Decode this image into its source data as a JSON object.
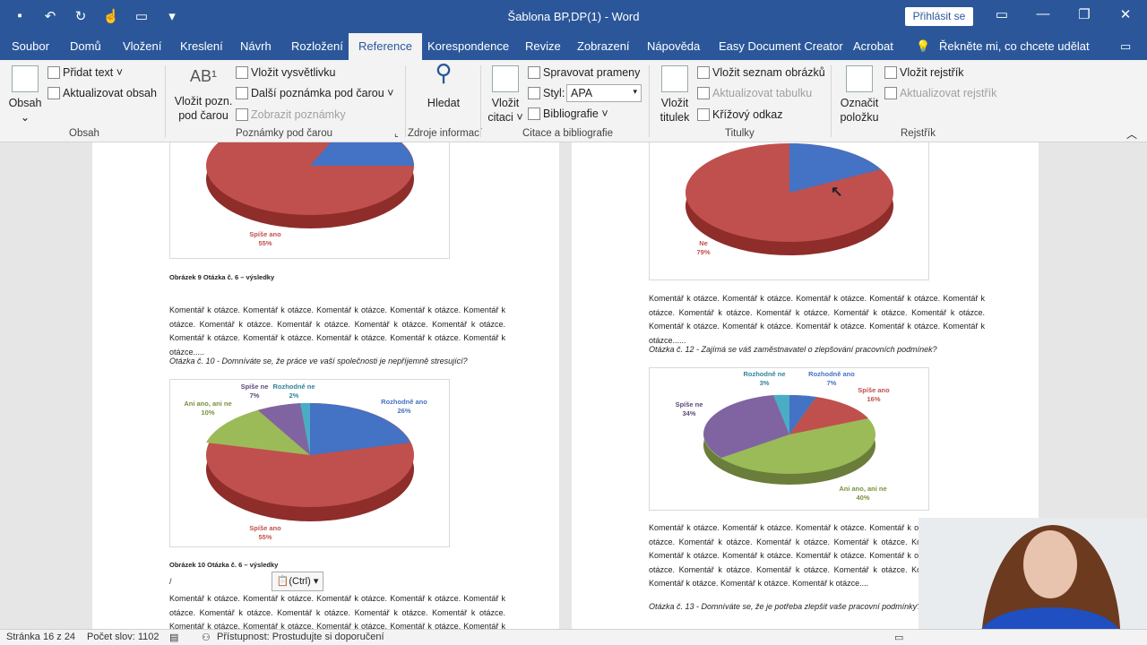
{
  "window": {
    "title": "Šablona BP,DP(1)  -  Word",
    "login_label": "Přihlásit se",
    "qat_icons": [
      "save-icon",
      "undo-icon",
      "redo-icon",
      "touch-icon",
      "new-doc-icon",
      "customize-icon"
    ]
  },
  "tabs": [
    "Soubor",
    "Domů",
    "Vložení",
    "Kreslení",
    "Návrh",
    "Rozložení",
    "Reference",
    "Korespondence",
    "Revize",
    "Zobrazení",
    "Nápověda",
    "Easy Document Creator",
    "Acrobat"
  ],
  "active_tab": "Reference",
  "tell_me": "Řekněte mi, co chcete udělat",
  "ribbon": {
    "obsah": {
      "big_label1": "Obsah",
      "add_text": "Přidat text",
      "update": "Aktualizovat obsah",
      "group": "Obsah"
    },
    "footnotes": {
      "insert_label1": "Vložit pozn.",
      "insert_label2": "pod čarou",
      "endnote": "Vložit vysvětlivku",
      "next": "Další poznámka pod čarou",
      "show": "Zobrazit poznámky",
      "group": "Poznámky pod čarou"
    },
    "research": {
      "search": "Hledat",
      "group": "Zdroje informací"
    },
    "citations": {
      "insert1": "Vložit",
      "insert2": "citaci",
      "manage": "Spravovat prameny",
      "style_label": "Styl:",
      "style_value": "APA",
      "bibliography": "Bibliografie",
      "group": "Citace a bibliografie"
    },
    "captions": {
      "insert1": "Vložit",
      "insert2": "titulek",
      "figures": "Vložit seznam obrázků",
      "update_table": "Aktualizovat tabulku",
      "cross": "Křížový odkaz",
      "group": "Titulky"
    },
    "index": {
      "mark1": "Označit",
      "mark2": "položku",
      "insert": "Vložit rejstřík",
      "update": "Aktualizovat rejstřík",
      "group": "Rejstřík"
    }
  },
  "left_page": {
    "chart1_labels": [
      {
        "text": "Spíše ano",
        "pct": "55%"
      }
    ],
    "caption1": "Obrázek 9 Otázka č. 6 – výsledky",
    "para1": "Komentář k otázce. Komentář k otázce. Komentář k otázce. Komentář k otázce. Komentář k otázce. Komentář k otázce. Komentář k otázce. Komentář k otázce. Komentář k otázce. Komentář k otázce. Ko­mentář k otázce. Komentář k otázce. Komentář k otázce. Komentář k otázce.....",
    "question10": "Otázka č. 10 - Domníváte se, že práce ve vaší společnosti je nepříjemně stresující?",
    "chart2": {
      "labels": [
        {
          "text": "Rozhodně ano",
          "pct": "26%"
        },
        {
          "text": "Spíše ano",
          "pct": "55%"
        },
        {
          "text": "Ani ano, ani ne",
          "pct": "10%"
        },
        {
          "text": "Spíše ne",
          "pct": "7%"
        },
        {
          "text": "Rozhodně ne",
          "pct": "2%"
        }
      ]
    },
    "caption2": "Obrázek 10 Otázka č. 6 – výsledky",
    "cursor_line": "/",
    "paste_tag": "(Ctrl)",
    "para2": "Komentář k otázce. Komentář k otázce. Komentář k otázce. Komentář k otázce. Komentář k otázce. Komentář k otázce. Komentář k otázce. Komentář k otázce. Komentář k otázce. Komentář k otázce. Ko­mentář k otázce. Komentář k otázce. Komentář k otázce. Komentář k otázce. Komentář k otázce. Ko­"
  },
  "right_page": {
    "chart1_label": {
      "text": "Ne",
      "pct": "79%"
    },
    "para1": "Komentář k otázce. Komentář k otázce. Komentář k otázce. Komentář k otázce. Komentář k otázce. Komentář k otázce. Komentář k otázce. Komentář k otázce. Komentář k otázce. Komentář k otázce. Ko­mentář k otázce. Komentář k otázce. Komentář k otázce. Komentář k otázce......",
    "question12": "Otázka č. 12 - Zajímá se váš zaměstnavatel o zlepšování pracovních podmínek?",
    "chart2": {
      "labels": [
        {
          "text": "Rozhodně ano",
          "pct": "7%"
        },
        {
          "text": "Spíše ano",
          "pct": "16%"
        },
        {
          "text": "Ani ano, ani ne",
          "pct": "40%"
        },
        {
          "text": "Spíše ne",
          "pct": "34%"
        },
        {
          "text": "Rozhodně ne",
          "pct": "3%"
        }
      ]
    },
    "para2": "Komentář k otázce. Komentář k otázce. Komentář k otázce. Komentář k otázce. Komentář k otázce. Komentář k otázce. Komentář k otázce. Komentář k otázce. Komentář k otázce. Komentář k otázce. Komentář k otázce. Komentář k otázce. Komentář k otázce. Komentář k otázce. Komentář k otázce. Komentář k otázce. Komentář k otázce. Komentář k otázce. Komentář k otázce. Komentář k otázce. Komentář k otázce....",
    "question13": "Otázka č. 13 - Domníváte se, že je potřeba zlepšit vaše pracovní podmínky?"
  },
  "status": {
    "page": "Stránka 16 z 24",
    "words": "Počet slov: 1102",
    "accessibility": "Přístupnost: Prostudujte si doporučení"
  },
  "colors": {
    "blue": "#4472c4",
    "red": "#c0504d",
    "green": "#9bbb59",
    "purple": "#8064a2",
    "cyan": "#4bacc6",
    "brand": "#2b579a"
  }
}
